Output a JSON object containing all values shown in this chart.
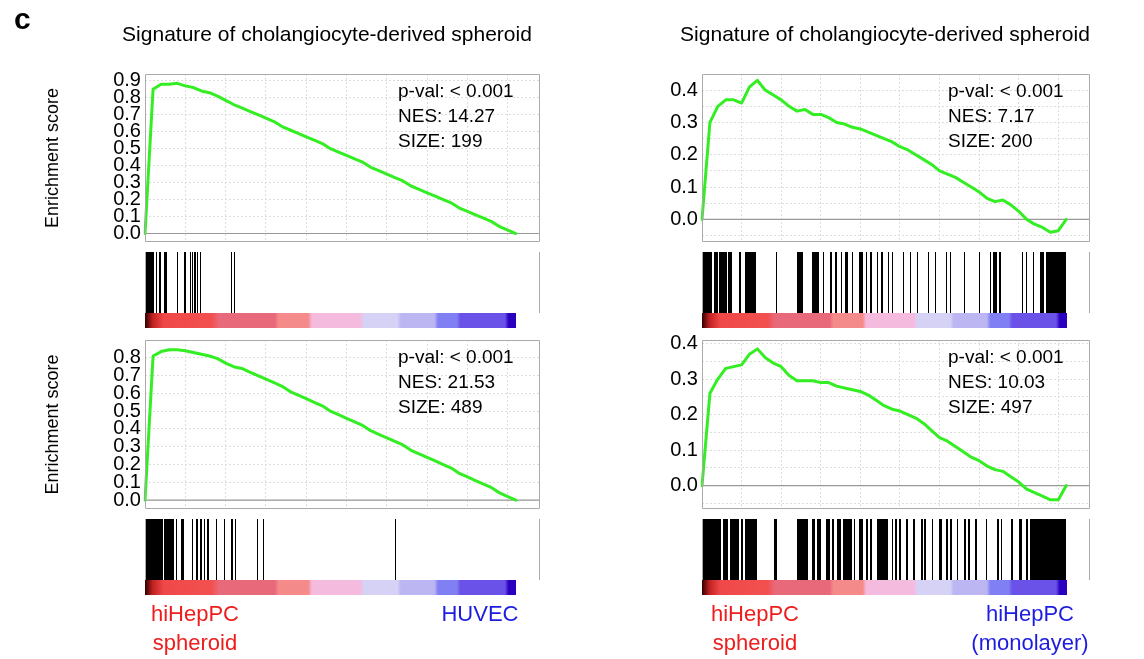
{
  "chart_data": [
    {
      "type": "line",
      "title": "Signature of cholangiocyte-derived spheroid",
      "ylabel": "Enrichment score",
      "categories": [
        null,
        null,
        null,
        null,
        null,
        null,
        null,
        null,
        null,
        null,
        null,
        null,
        null,
        null,
        null,
        null,
        null,
        null,
        null,
        null,
        null,
        null,
        null,
        null,
        null,
        null,
        null,
        null,
        null,
        null,
        null,
        null,
        null,
        null,
        null,
        null,
        null,
        null,
        null,
        null,
        null,
        null,
        null,
        null,
        null,
        null,
        null,
        null,
        null,
        null
      ],
      "series": [
        {
          "color": "#33ee22",
          "values": [
            0,
            0.85,
            0.88,
            0.88,
            0.885,
            0.87,
            0.86,
            0.84,
            0.83,
            0.81,
            0.785,
            0.76,
            0.74,
            0.72,
            0.7,
            0.68,
            0.66,
            0.63,
            0.61,
            0.59,
            0.57,
            0.55,
            0.53,
            0.5,
            0.48,
            0.46,
            0.44,
            0.42,
            0.39,
            0.37,
            0.35,
            0.33,
            0.31,
            0.28,
            0.26,
            0.24,
            0.22,
            0.2,
            0.18,
            0.15,
            0.13,
            0.11,
            0.09,
            0.07,
            0.04,
            0.02,
            0,
            null,
            null,
            null
          ]
        }
      ],
      "ylim": [
        -0.05,
        0.94
      ],
      "yticks": [
        {
          "value": 0,
          "label": "0.0"
        },
        0.1,
        0.2,
        0.3,
        0.4,
        0.5,
        0.6,
        0.7,
        0.8,
        0.9
      ],
      "grid": true,
      "tick_labels": "y",
      "marker": "none",
      "line_style": "solid",
      "ref_lines": [
        {
          "axis": "y",
          "value": 0
        }
      ],
      "annotations": [
        "c",
        "p-val: < 0.001",
        "NES: 14.27",
        "SIZE: 199"
      ]
    },
    {
      "type": "line",
      "title": "Signature of cholangiocyte-derived spheroid",
      "categories": [
        null,
        null,
        null,
        null,
        null,
        null,
        null,
        null,
        null,
        null,
        null,
        null,
        null,
        null,
        null,
        null,
        null,
        null,
        null,
        null,
        null,
        null,
        null,
        null,
        null,
        null,
        null,
        null,
        null,
        null,
        null,
        null,
        null,
        null,
        null,
        null,
        null,
        null,
        null,
        null,
        null,
        null,
        null,
        null,
        null,
        null,
        null,
        null,
        null,
        null
      ],
      "series": [
        {
          "color": "#33ee22",
          "values": [
            0,
            0.3,
            0.35,
            0.37,
            0.37,
            0.36,
            0.41,
            0.43,
            0.4,
            0.385,
            0.37,
            0.35,
            0.335,
            0.34,
            0.325,
            0.325,
            0.315,
            0.3,
            0.295,
            0.285,
            0.28,
            0.27,
            0.26,
            0.25,
            0.24,
            0.225,
            0.215,
            0.2,
            0.185,
            0.17,
            0.15,
            0.14,
            0.13,
            0.115,
            0.1,
            0.085,
            0.065,
            0.055,
            0.06,
            0.045,
            0.025,
            0,
            -0.015,
            -0.025,
            -0.04,
            -0.035,
            0,
            null,
            null,
            null
          ]
        }
      ],
      "ylim": [
        -0.07,
        0.45
      ],
      "yticks": [
        {
          "value": -0.05,
          "label": null
        },
        {
          "value": 0,
          "label": "0.0"
        },
        {
          "value": 0.05,
          "label": null
        },
        0.1,
        {
          "value": 0.15,
          "label": null
        },
        0.2,
        {
          "value": 0.25,
          "label": null
        },
        0.3,
        {
          "value": 0.35,
          "label": null
        },
        0.4
      ],
      "grid": true,
      "tick_labels": "y",
      "marker": "none",
      "line_style": "solid",
      "ref_lines": [
        {
          "axis": "y",
          "value": 0
        }
      ],
      "annotations": [
        "p-val: < 0.001",
        "NES: 7.17",
        "SIZE: 200"
      ]
    },
    {
      "type": "line",
      "ylabel": "Enrichment score",
      "categories": [
        null,
        null,
        null,
        null,
        null,
        null,
        null,
        null,
        null,
        null,
        null,
        null,
        null,
        null,
        null,
        null,
        null,
        null,
        null,
        null,
        null,
        null,
        null,
        null,
        null,
        null,
        null,
        null,
        null,
        null,
        null,
        null,
        null,
        null,
        null,
        null,
        null,
        null,
        null,
        null,
        null,
        null,
        null,
        null,
        null,
        null,
        null,
        null,
        null,
        null
      ],
      "series": [
        {
          "color": "#33ee22",
          "values": [
            0,
            0.81,
            0.835,
            0.845,
            0.845,
            0.84,
            0.83,
            0.82,
            0.81,
            0.795,
            0.77,
            0.75,
            0.74,
            0.72,
            0.7,
            0.68,
            0.66,
            0.64,
            0.61,
            0.59,
            0.57,
            0.55,
            0.53,
            0.5,
            0.48,
            0.46,
            0.44,
            0.42,
            0.39,
            0.37,
            0.35,
            0.33,
            0.31,
            0.28,
            0.26,
            0.24,
            0.22,
            0.2,
            0.18,
            0.15,
            0.13,
            0.11,
            0.09,
            0.07,
            0.04,
            0.02,
            0,
            null,
            null,
            null
          ]
        }
      ],
      "ylim": [
        -0.05,
        0.9
      ],
      "yticks": [
        {
          "value": 0,
          "label": "0.0"
        },
        0.1,
        0.2,
        0.3,
        0.4,
        0.5,
        0.6,
        0.7,
        0.8
      ],
      "grid": true,
      "tick_labels": "y",
      "marker": "none",
      "line_style": "solid",
      "ref_lines": [
        {
          "axis": "y",
          "value": 0
        }
      ],
      "annotations": [
        "p-val: < 0.001",
        "NES: 21.53",
        "SIZE: 489",
        "hiHepPC spheroid",
        "HUVEC"
      ]
    },
    {
      "type": "line",
      "categories": [
        null,
        null,
        null,
        null,
        null,
        null,
        null,
        null,
        null,
        null,
        null,
        null,
        null,
        null,
        null,
        null,
        null,
        null,
        null,
        null,
        null,
        null,
        null,
        null,
        null,
        null,
        null,
        null,
        null,
        null,
        null,
        null,
        null,
        null,
        null,
        null,
        null,
        null,
        null,
        null,
        null,
        null,
        null,
        null,
        null,
        null,
        null,
        null,
        null,
        null
      ],
      "series": [
        {
          "color": "#33ee22",
          "values": [
            0,
            0.26,
            0.3,
            0.33,
            0.335,
            0.34,
            0.37,
            0.385,
            0.36,
            0.345,
            0.335,
            0.31,
            0.295,
            0.295,
            0.295,
            0.29,
            0.29,
            0.28,
            0.275,
            0.27,
            0.265,
            0.255,
            0.24,
            0.225,
            0.215,
            0.21,
            0.2,
            0.19,
            0.175,
            0.155,
            0.135,
            0.125,
            0.11,
            0.095,
            0.08,
            0.07,
            0.055,
            0.045,
            0.04,
            0.025,
            0.01,
            -0.01,
            -0.02,
            -0.03,
            -0.04,
            -0.04,
            0,
            null,
            null,
            null
          ]
        }
      ],
      "ylim": [
        -0.066,
        0.41
      ],
      "yticks": [
        {
          "value": -0.05,
          "label": null
        },
        {
          "value": 0,
          "label": "0.0"
        },
        {
          "value": 0.05,
          "label": null
        },
        0.1,
        {
          "value": 0.15,
          "label": null
        },
        0.2,
        {
          "value": 0.25,
          "label": null
        },
        0.3,
        {
          "value": 0.35,
          "label": null
        },
        0.4
      ],
      "grid": true,
      "tick_labels": "y",
      "marker": "none",
      "line_style": "solid",
      "ref_lines": [
        {
          "axis": "y",
          "value": 0
        }
      ],
      "annotations": [
        "p-val: < 0.001",
        "NES: 10.03",
        "SIZE: 497",
        "hiHepPC spheroid",
        "hiHepPC (monolayer)"
      ]
    }
  ]
}
